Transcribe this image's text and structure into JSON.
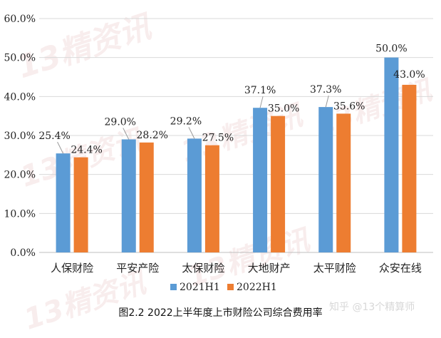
{
  "chart_data": {
    "type": "bar",
    "categories": [
      "人保财险",
      "平安产险",
      "太保财险",
      "大地财产",
      "太平财险",
      "众安在线"
    ],
    "series": [
      {
        "name": "2021H1",
        "color": "#5b9bd5",
        "values": [
          25.4,
          29.0,
          29.2,
          37.1,
          37.3,
          50.0
        ],
        "labels": [
          "25.4%",
          "29.0%",
          "29.2%",
          "37.1%",
          "37.3%",
          "50.0%"
        ]
      },
      {
        "name": "2022H1",
        "color": "#ed7d31",
        "values": [
          24.4,
          28.2,
          27.5,
          35.0,
          35.6,
          43.0
        ],
        "labels": [
          "24.4%",
          "28.2%",
          "27.5%",
          "35.0%",
          "35.6%",
          "43.0%"
        ]
      }
    ],
    "ylim": [
      0,
      60
    ],
    "yticks": [
      "0.0%",
      "10.0%",
      "20.0%",
      "30.0%",
      "40.0%",
      "50.0%",
      "60.0%"
    ],
    "grid": true,
    "legend_position": "bottom"
  },
  "caption": "图2.2  2022上半年度上市财险公司综合费用率",
  "credit": "知乎 @13个精算师",
  "watermark": "13精资讯"
}
